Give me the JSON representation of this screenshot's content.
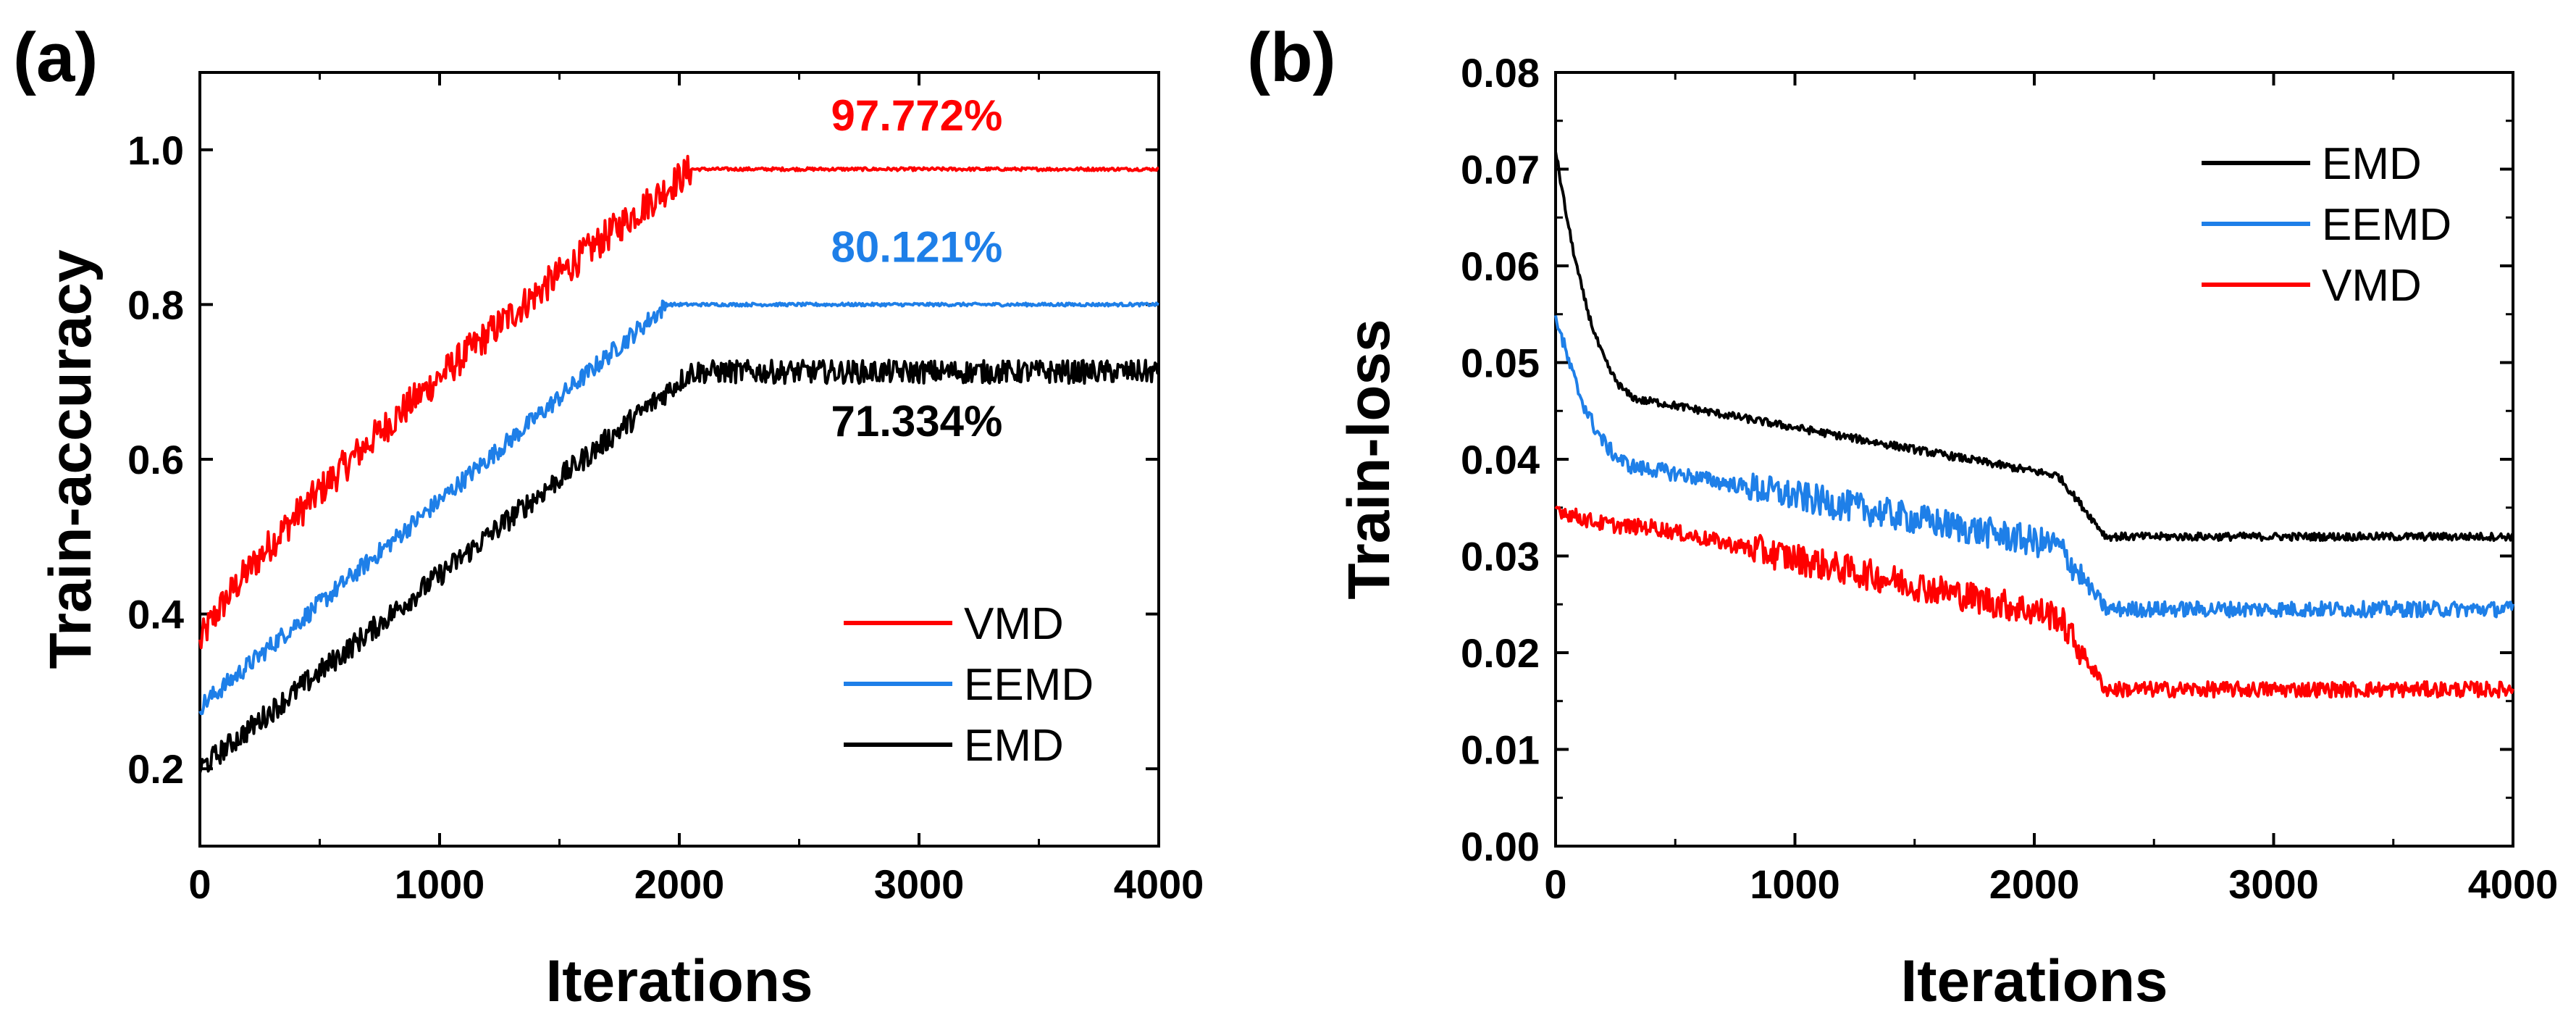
{
  "chart_data": [
    {
      "panel_label": "(a)",
      "type": "line",
      "xlabel": "Iterations",
      "ylabel": "Train-accuracy",
      "xlim": [
        0,
        4000
      ],
      "ylim": [
        0.1,
        1.1
      ],
      "xticks": [
        0,
        1000,
        2000,
        3000,
        4000
      ],
      "yticks": [
        0.2,
        0.4,
        0.6,
        0.8,
        1.0
      ],
      "xtick_labels": [
        "0",
        "1000",
        "2000",
        "3000",
        "4000"
      ],
      "ytick_labels": [
        "0.2",
        "0.4",
        "0.6",
        "0.8",
        "1.0"
      ],
      "legend_position": "bottom-right",
      "series": [
        {
          "name": "VMD",
          "color": "#ff0000",
          "start": 0.36,
          "plateau": 0.975,
          "plateau_start": 2050,
          "noise": 0.022,
          "plateau_noise": 0.002
        },
        {
          "name": "EEMD",
          "color": "#1e7fe8",
          "start": 0.28,
          "plateau": 0.8,
          "plateau_start": 1950,
          "noise": 0.012,
          "plateau_noise": 0.002
        },
        {
          "name": "EMD",
          "color": "#000000",
          "start": 0.2,
          "plateau": 0.713,
          "plateau_start": 2050,
          "noise": 0.015,
          "plateau_noise": 0.015
        }
      ],
      "annotations": [
        {
          "text": "97.772%",
          "color": "#ff0000",
          "x": 2900,
          "y": 1.025
        },
        {
          "text": "80.121%",
          "color": "#1e7fe8",
          "x": 2900,
          "y": 0.855
        },
        {
          "text": "71.334%",
          "color": "#000000",
          "x": 2900,
          "y": 0.63
        }
      ]
    },
    {
      "panel_label": "(b)",
      "type": "line",
      "xlabel": "Iterations",
      "ylabel": "Train-loss",
      "xlim": [
        0,
        4000
      ],
      "ylim": [
        0,
        0.08
      ],
      "xticks": [
        0,
        1000,
        2000,
        3000,
        4000
      ],
      "yticks": [
        0.0,
        0.01,
        0.02,
        0.03,
        0.04,
        0.05,
        0.06,
        0.07,
        0.08
      ],
      "xtick_labels": [
        "0",
        "1000",
        "2000",
        "3000",
        "4000"
      ],
      "ytick_labels": [
        "0.00",
        "0.01",
        "0.02",
        "0.03",
        "0.04",
        "0.05",
        "0.06",
        "0.07",
        "0.08"
      ],
      "legend_position": "top-right",
      "series": [
        {
          "name": "EMD",
          "color": "#000000",
          "start": 0.072,
          "level1": 0.046,
          "end": 0.032,
          "noise": 0.0004
        },
        {
          "name": "EEMD",
          "color": "#1e7fe8",
          "start": 0.055,
          "level1": 0.039,
          "end": 0.0245,
          "noise": 0.0008
        },
        {
          "name": "VMD",
          "color": "#ff0000",
          "start": 0.035,
          "level1": 0.033,
          "end": 0.0162,
          "noise": 0.0008
        }
      ]
    }
  ]
}
